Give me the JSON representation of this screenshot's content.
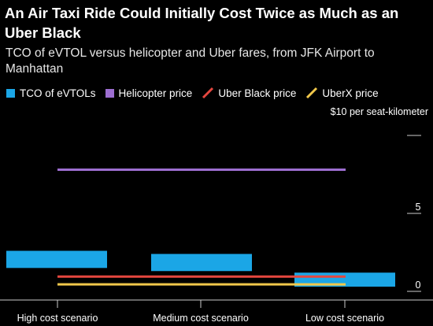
{
  "title": "An Air Taxi Ride Could Initially Cost Twice as Much as an Uber Black",
  "subtitle": "TCO of eVTOL versus helicopter and Uber fares, from JFK Airport to Manhattan",
  "colors": {
    "evtol": "#1ba6e6",
    "helicopter": "#9d6ed1",
    "uber_black": "#e5473f",
    "uberx": "#f1c84b",
    "axis": "#cccccc"
  },
  "chart_data": {
    "type": "bar",
    "categories": [
      "High cost scenario",
      "Medium cost scenario",
      "Low cost scenario"
    ],
    "ylabel": "$10 per seat-kilometer",
    "ylim": [
      0,
      10
    ],
    "yticks": [
      0,
      5,
      10
    ],
    "ytick_labels": [
      "0",
      "5",
      ""
    ],
    "series": [
      {
        "name": "TCO of eVTOLs",
        "kind": "range-bar",
        "values": [
          [
            1.5,
            2.6
          ],
          [
            1.3,
            2.4
          ],
          [
            0.3,
            1.2
          ]
        ]
      },
      {
        "name": "Helicopter price",
        "kind": "line",
        "value": 7.8
      },
      {
        "name": "Uber Black price",
        "kind": "line",
        "value": 0.95
      },
      {
        "name": "UberX price",
        "kind": "line",
        "value": 0.45
      }
    ],
    "legend_position": "top-left",
    "grid": false
  }
}
